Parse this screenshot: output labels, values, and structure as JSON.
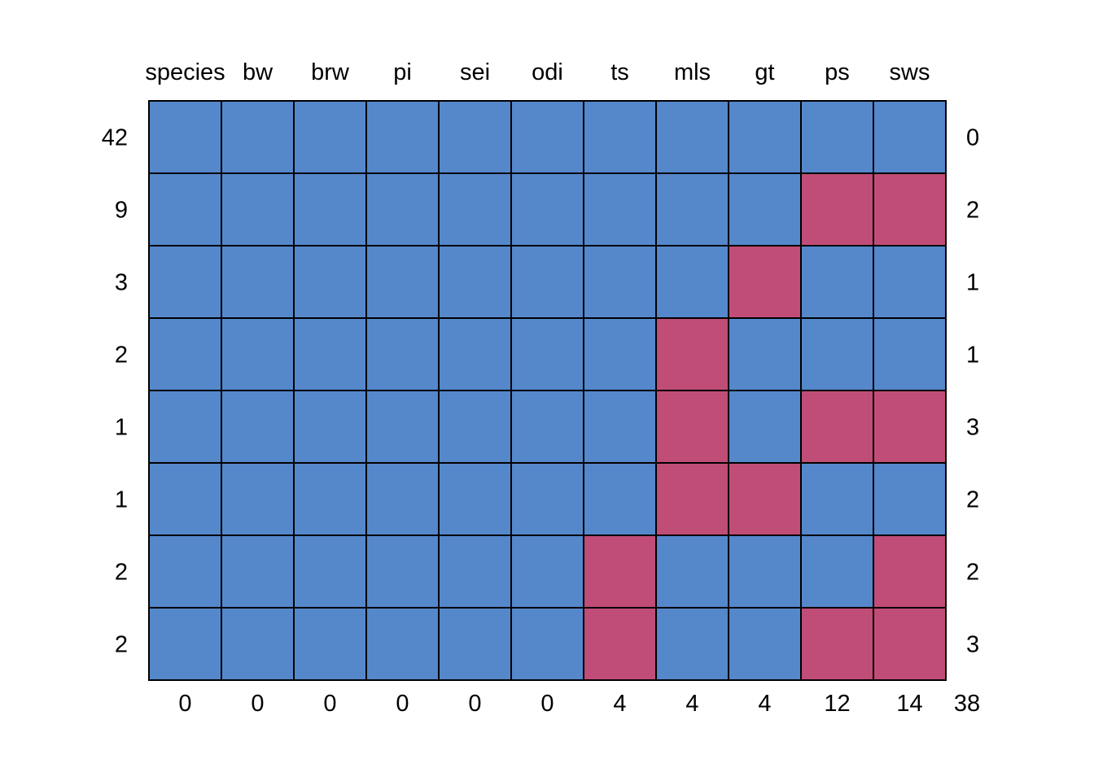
{
  "chart_data": {
    "type": "heatmap",
    "title": "",
    "xlabel": "",
    "ylabel": "",
    "columns": [
      "species",
      "bw",
      "brw",
      "pi",
      "sei",
      "odi",
      "ts",
      "mls",
      "gt",
      "ps",
      "sws"
    ],
    "rows": [
      {
        "count": "42",
        "pattern": [
          1,
          1,
          1,
          1,
          1,
          1,
          1,
          1,
          1,
          1,
          1
        ],
        "missing": "0"
      },
      {
        "count": "9",
        "pattern": [
          1,
          1,
          1,
          1,
          1,
          1,
          1,
          1,
          1,
          0,
          0
        ],
        "missing": "2"
      },
      {
        "count": "3",
        "pattern": [
          1,
          1,
          1,
          1,
          1,
          1,
          1,
          1,
          0,
          1,
          1
        ],
        "missing": "1"
      },
      {
        "count": "2",
        "pattern": [
          1,
          1,
          1,
          1,
          1,
          1,
          1,
          0,
          1,
          1,
          1
        ],
        "missing": "1"
      },
      {
        "count": "1",
        "pattern": [
          1,
          1,
          1,
          1,
          1,
          1,
          1,
          0,
          1,
          0,
          0
        ],
        "missing": "3"
      },
      {
        "count": "1",
        "pattern": [
          1,
          1,
          1,
          1,
          1,
          1,
          1,
          0,
          0,
          1,
          1
        ],
        "missing": "2"
      },
      {
        "count": "2",
        "pattern": [
          1,
          1,
          1,
          1,
          1,
          1,
          0,
          1,
          1,
          1,
          0
        ],
        "missing": "2"
      },
      {
        "count": "2",
        "pattern": [
          1,
          1,
          1,
          1,
          1,
          1,
          0,
          1,
          1,
          0,
          0
        ],
        "missing": "3"
      }
    ],
    "column_missing": [
      "0",
      "0",
      "0",
      "0",
      "0",
      "0",
      "4",
      "4",
      "4",
      "12",
      "14"
    ],
    "total_missing": "38",
    "colors": {
      "observed": "#5588cb",
      "missing": "#c04d77",
      "border": "#000000"
    }
  }
}
